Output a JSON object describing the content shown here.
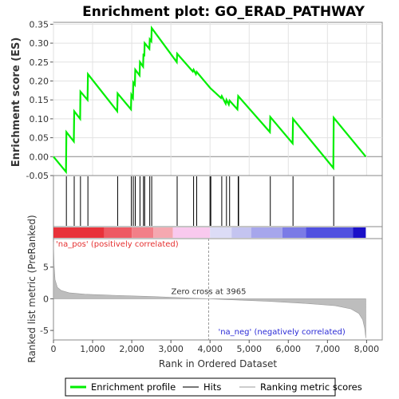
{
  "chart_data": {
    "type": "line",
    "title": "Enrichment plot: GO_ERAD_PATHWAY",
    "xlabel": "Rank in Ordered Dataset",
    "ylabel_top": "Enrichment score (ES)",
    "ylabel_bottom": "Ranked list metric (PreRanked)",
    "xlim": [
      0,
      8400
    ],
    "ylim_top": [
      -0.05,
      0.355
    ],
    "ylim_bottom": [
      -6.5,
      9.5
    ],
    "x_ticks": [
      0,
      1000,
      2000,
      3000,
      4000,
      5000,
      6000,
      7000,
      8000
    ],
    "x_tick_labels": [
      "0",
      "1,000",
      "2,000",
      "3,000",
      "4,000",
      "5,000",
      "6,000",
      "7,000",
      "8,000"
    ],
    "y_ticks_top": [
      -0.05,
      0.0,
      0.05,
      0.1,
      0.15,
      0.2,
      0.25,
      0.3,
      0.35
    ],
    "y_tick_labels_top": [
      "-0.05",
      "0.00",
      "0.05",
      "0.10",
      "0.15",
      "0.20",
      "0.25",
      "0.30",
      "0.35"
    ],
    "y_ticks_bottom": [
      -5,
      0,
      5
    ],
    "y_tick_labels_bottom": [
      "-5",
      "0",
      "5"
    ],
    "enrichment_profile": [
      [
        0,
        0.0
      ],
      [
        320,
        -0.04
      ],
      [
        330,
        0.065
      ],
      [
        520,
        0.04
      ],
      [
        530,
        0.12
      ],
      [
        680,
        0.1
      ],
      [
        690,
        0.172
      ],
      [
        870,
        0.15
      ],
      [
        880,
        0.218
      ],
      [
        1630,
        0.12
      ],
      [
        1640,
        0.167
      ],
      [
        1980,
        0.125
      ],
      [
        1990,
        0.163
      ],
      [
        2030,
        0.155
      ],
      [
        2040,
        0.196
      ],
      [
        2080,
        0.19
      ],
      [
        2090,
        0.23
      ],
      [
        2200,
        0.215
      ],
      [
        2210,
        0.25
      ],
      [
        2290,
        0.238
      ],
      [
        2300,
        0.272
      ],
      [
        2320,
        0.265
      ],
      [
        2330,
        0.3
      ],
      [
        2450,
        0.285
      ],
      [
        2460,
        0.31
      ],
      [
        2500,
        0.305
      ],
      [
        2510,
        0.34
      ],
      [
        3150,
        0.25
      ],
      [
        3160,
        0.272
      ],
      [
        3560,
        0.225
      ],
      [
        3580,
        0.23
      ],
      [
        3640,
        0.218
      ],
      [
        3660,
        0.224
      ],
      [
        4000,
        0.182
      ],
      [
        4020,
        0.18
      ],
      [
        4280,
        0.155
      ],
      [
        4300,
        0.16
      ],
      [
        4400,
        0.14
      ],
      [
        4420,
        0.15
      ],
      [
        4480,
        0.138
      ],
      [
        4500,
        0.148
      ],
      [
        4700,
        0.125
      ],
      [
        4720,
        0.16
      ],
      [
        5530,
        0.065
      ],
      [
        5540,
        0.105
      ],
      [
        6110,
        0.035
      ],
      [
        6120,
        0.1
      ],
      [
        7150,
        -0.03
      ],
      [
        7160,
        0.103
      ],
      [
        7980,
        0.0
      ]
    ],
    "hits": [
      330,
      530,
      690,
      880,
      1640,
      1990,
      2040,
      2090,
      2210,
      2300,
      2330,
      2460,
      2510,
      3160,
      3580,
      3660,
      4000,
      4020,
      4300,
      4420,
      4500,
      4720,
      4730,
      5540,
      6120,
      7160
    ],
    "metric_curve": [
      [
        0,
        9.0
      ],
      [
        15,
        5.5
      ],
      [
        40,
        3.0
      ],
      [
        100,
        1.8
      ],
      [
        200,
        1.3
      ],
      [
        400,
        0.95
      ],
      [
        800,
        0.72
      ],
      [
        1500,
        0.55
      ],
      [
        2500,
        0.35
      ],
      [
        3500,
        0.12
      ],
      [
        3965,
        0.0
      ],
      [
        4500,
        -0.15
      ],
      [
        5500,
        -0.4
      ],
      [
        6500,
        -0.75
      ],
      [
        7200,
        -1.1
      ],
      [
        7600,
        -1.6
      ],
      [
        7800,
        -2.3
      ],
      [
        7900,
        -3.3
      ],
      [
        7950,
        -4.6
      ],
      [
        7980,
        -6.2
      ]
    ],
    "heatmap_colors": [
      "#e8323a",
      "#ee5a63",
      "#f27f88",
      "#f5a8b0",
      "#f9c9ee",
      "#dcdcf6",
      "#c4c4f0",
      "#a6a6ec",
      "#7b7be6",
      "#5050e0",
      "#1a10c8"
    ],
    "heatmap_breaks": [
      0,
      1300,
      2000,
      2550,
      3050,
      4000,
      4550,
      5050,
      5850,
      6450,
      7650,
      7980
    ],
    "zero_cross_label": "Zero cross at 3965",
    "zero_cross_rank": 3965,
    "pos_label": "'na_pos' (positively correlated)",
    "neg_label": "'na_neg' (negatively correlated)",
    "colors": {
      "profile": "#00ee00",
      "hits": "#000000",
      "metric_fill": "#bdbdbd",
      "pos_label": "#e53030",
      "neg_label": "#2b2bd6",
      "zero_line": "#999999"
    }
  },
  "legend": {
    "items": [
      {
        "label": "Enrichment profile",
        "icon": "green-line"
      },
      {
        "label": "Hits",
        "icon": "dark-line"
      },
      {
        "label": "Ranking metric scores",
        "icon": "gray-line"
      }
    ]
  }
}
